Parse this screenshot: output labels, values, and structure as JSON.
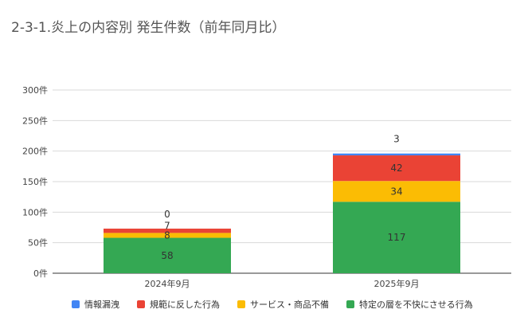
{
  "chart_data": {
    "type": "bar",
    "stacked": true,
    "title": "2-3-1.炎上の内容別 発生件数（前年同月比）",
    "categories": [
      "2024年9月",
      "2025年9月"
    ],
    "series": [
      {
        "name": "特定の層を不快にさせる行為",
        "color": "#34a853",
        "values": [
          58,
          117
        ]
      },
      {
        "name": "サービス・商品不備",
        "color": "#fbbc04",
        "values": [
          8,
          34
        ]
      },
      {
        "name": "規範に反した行為",
        "color": "#ea4335",
        "values": [
          7,
          42
        ]
      },
      {
        "name": "情報漏洩",
        "color": "#4285f4",
        "values": [
          0,
          3
        ]
      }
    ],
    "legend_order": [
      "情報漏洩",
      "規範に反した行為",
      "サービス・商品不備",
      "特定の層を不快にさせる行為"
    ],
    "y_ticks": [
      "0件",
      "50件",
      "100件",
      "150件",
      "200件",
      "250件",
      "300件"
    ],
    "ylim": [
      0,
      300
    ],
    "grid": true,
    "legend_position": "bottom"
  }
}
